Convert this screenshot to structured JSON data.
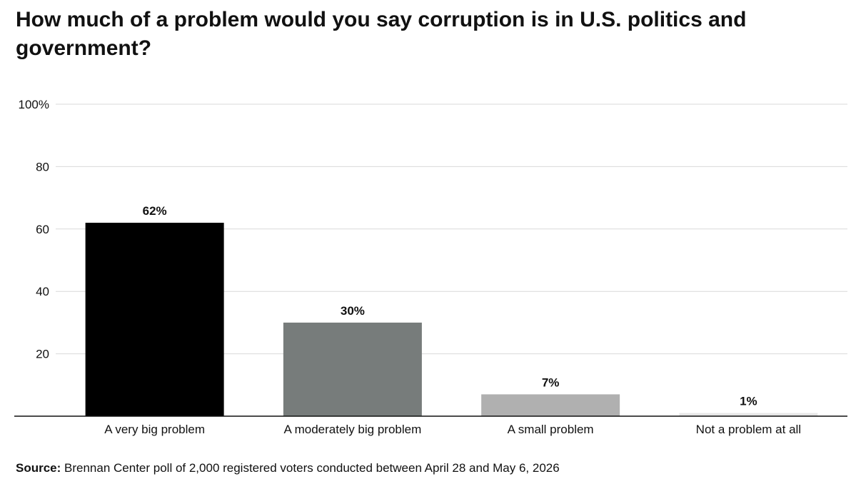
{
  "chart_data": {
    "type": "bar",
    "title": "How much of a problem would you say corruption is in U.S. politics and government?",
    "xlabel": "",
    "ylabel": "",
    "ylim": [
      0,
      100
    ],
    "yticks": [
      {
        "value": 20,
        "label": "20"
      },
      {
        "value": 40,
        "label": "40"
      },
      {
        "value": 60,
        "label": "60"
      },
      {
        "value": 80,
        "label": "80"
      },
      {
        "value": 100,
        "label": "100%"
      }
    ],
    "categories": [
      "A very big problem",
      "A moderately big problem",
      "A small problem",
      "Not a problem at all"
    ],
    "values": [
      62,
      30,
      7,
      1
    ],
    "data_labels": [
      "62%",
      "30%",
      "7%",
      "1%"
    ],
    "bar_colors": [
      "#000000",
      "#777c7b",
      "#b0b0b0",
      "#e6e6e6"
    ],
    "grid": true,
    "legend": "none"
  },
  "source": {
    "label": "Source:",
    "text": " Brennan Center poll of 2,000 registered voters conducted between April 28 and May 6, 2026"
  }
}
